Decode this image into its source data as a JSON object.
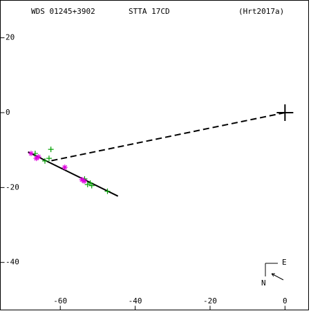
{
  "chart_data": {
    "type": "scatter",
    "title": "WDS 01245+3902",
    "subtitle": "STTA 17CD",
    "reference": "(Hrt2017a)",
    "xlim": [
      -76,
      6.3
    ],
    "ylim": [
      -52.7,
      30
    ],
    "xticks": [
      -60,
      -40,
      -20,
      0
    ],
    "yticks": [
      20,
      0,
      -20,
      -40
    ],
    "primary": {
      "x": 0,
      "y": 0,
      "color": "#000000"
    },
    "series": [
      {
        "marker": "plus",
        "color": "#00a000",
        "x": [
          -66.7,
          -62.5,
          -63.0,
          -53.5,
          -52.0,
          -52.7,
          -51.6,
          -47.4,
          -64.1
        ],
        "y": [
          -10.9,
          -9.8,
          -12.2,
          -17.7,
          -18.8,
          -19.2,
          -19.5,
          -21.0,
          -12.9
        ]
      },
      {
        "marker": "asterisk",
        "color": "#e000e0",
        "x": [
          -67.8,
          -65.8,
          -66.4,
          -58.8,
          -54.2,
          -53.6
        ],
        "y": [
          -10.9,
          -11.8,
          -12.2,
          -14.6,
          -17.9,
          -18.3
        ]
      }
    ],
    "lines": [
      {
        "style": "solid",
        "color": "#000000",
        "x": [
          -68.6,
          -44.6
        ],
        "y": [
          -10.5,
          -22.3
        ]
      },
      {
        "style": "dashed",
        "color": "#000000",
        "x": [
          0,
          -62.7
        ],
        "y": [
          0,
          -12.9
        ]
      }
    ],
    "compass": {
      "east": "E",
      "north": "N"
    }
  }
}
